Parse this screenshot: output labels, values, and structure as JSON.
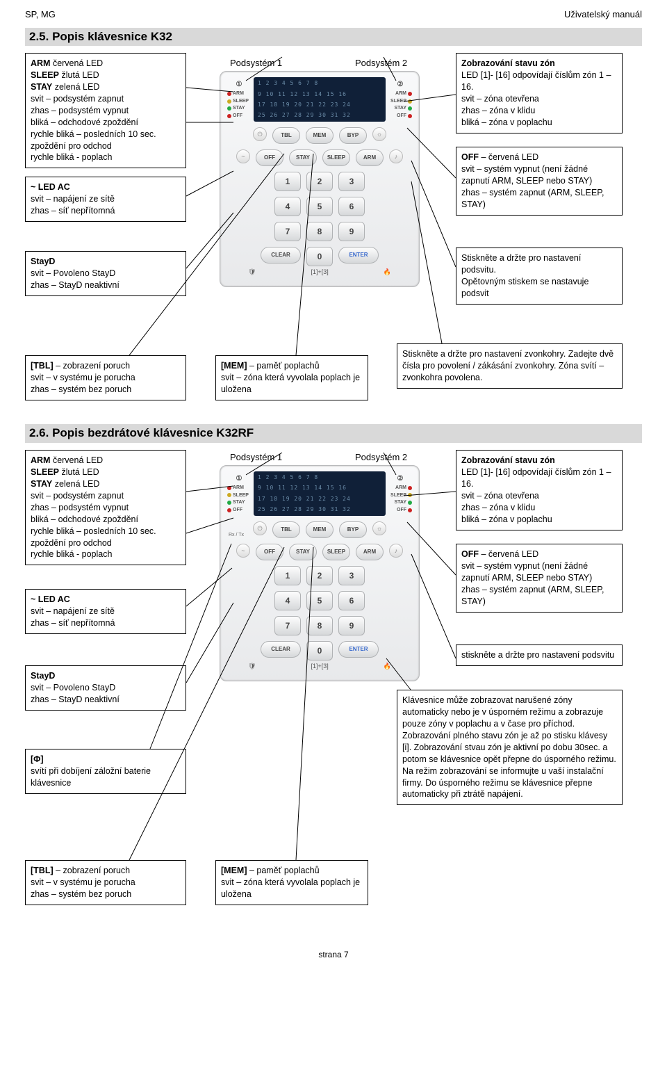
{
  "header": {
    "left": "SP, MG",
    "right": "Uživatelský manuál"
  },
  "section1_title": "2.5. Popis klávesnice K32",
  "section2_title": "2.6. Popis bezdrátové klávesnice K32RF",
  "footer": "strana 7",
  "keypad": {
    "subsystem1": "Podsystém 1",
    "subsystem2": "Podsystém 2",
    "side_left": [
      {
        "t": "ARM",
        "c": "#cc2222"
      },
      {
        "t": "SLEEP",
        "c": "#ccaa22"
      },
      {
        "t": "STAY",
        "c": "#22aa44"
      },
      {
        "t": "OFF",
        "c": "#cc2222"
      }
    ],
    "side_right": [
      {
        "t": "ARM",
        "c": "#cc2222"
      },
      {
        "t": "SLEEP",
        "c": "#ccaa22"
      },
      {
        "t": "STAY",
        "c": "#22aa44"
      },
      {
        "t": "OFF",
        "c": "#cc2222"
      }
    ],
    "lcd_rows": [
      "1  2  3  4  5  6  7  8",
      "9 10 11 12 13 14 15 16",
      "17 18 19 20 21 22 23 24",
      "25 26 27 28 29 30 31 32"
    ],
    "fn_row": [
      "TBL",
      "MEM",
      "BYP"
    ],
    "mode_row": [
      "OFF",
      "STAY",
      "SLEEP",
      "ARM"
    ],
    "digit_rows": [
      [
        "1",
        "2",
        "3"
      ],
      [
        "4",
        "5",
        "6"
      ],
      [
        "7",
        "8",
        "9"
      ]
    ],
    "bottom_row": [
      "CLEAR",
      "0",
      "ENTER"
    ],
    "icon_row": [
      "🛡",
      "[1]+[3]",
      "🔥"
    ],
    "rx": "Rx / Tx"
  },
  "callouts": {
    "arm_block": "<b>ARM</b> červená LED<br><b>SLEEP</b> žlutá LED<br><b>STAY</b> zelená LED<br>svit – podsystém zapnut<br>zhas – podsystém vypnut<br>bliká – odchodové zpoždění<br>rychle bliká – posledních 10 sec. zpoždění pro odchod<br>rychle bliká - poplach",
    "led_ac": "<b>~ LED AC</b><br>svit – napájení ze sítě<br>zhas – síť nepřítomná",
    "stayd": "<b>StayD</b><br>svit – Povoleno StayD<br>zhas – StayD neaktivní",
    "tbl": "<b>[TBL]</b> – zobrazení poruch<br>svit – v systému je porucha<br>zhas – systém bez poruch",
    "mem": "<b>[MEM]</b> – paměť poplachů<br>svit – zóna která vyvolala poplach je uložena",
    "zones": "<b>Zobrazování stavu zón</b><br>LED [1]- [16] odpovídají číslům zón 1 – 16.<br>svit – zóna otevřena<br>zhas – zóna v klidu<br>bliká – zóna v poplachu",
    "off": "<b>OFF</b> – červená LED<br>svit – systém vypnut (není žádné zapnutí ARM, SLEEP nebo STAY)<br>zhas – systém zapnut (ARM, SLEEP, STAY)",
    "backlight": "Stiskněte a držte pro nastavení podsvitu.<br>Opětovným stiskem se nastavuje podsvit",
    "bell": "Stiskněte a držte pro nastavení zvonkohry. Zadejte dvě čísla pro povolení / zákásání zvonkohry. Zóna svítí – zvonkohra povolena.",
    "backlight2": "stiskněte a držte pro nastavení podsvitu",
    "phi": "<b>[Φ]</b><br>svítí při dobíjení záložní baterie klávesnice",
    "wireless_note": "Klávesnice může zobrazovat narušené zóny automaticky nebo je v úsporném režimu a zobrazuje pouze zóny v poplachu a v čase pro příchod. Zobrazování plného stavu zón je až po stisku klávesy [i]. Zobrazování stvau zón je aktivní po dobu 30sec. a potom se klávesnice opět přepne do úsporného režimu. Na režim zobrazování se informujte u vaší instalační firmy. Do úsporného režimu se klávesnice přepne automaticky při ztrátě napájení."
  }
}
